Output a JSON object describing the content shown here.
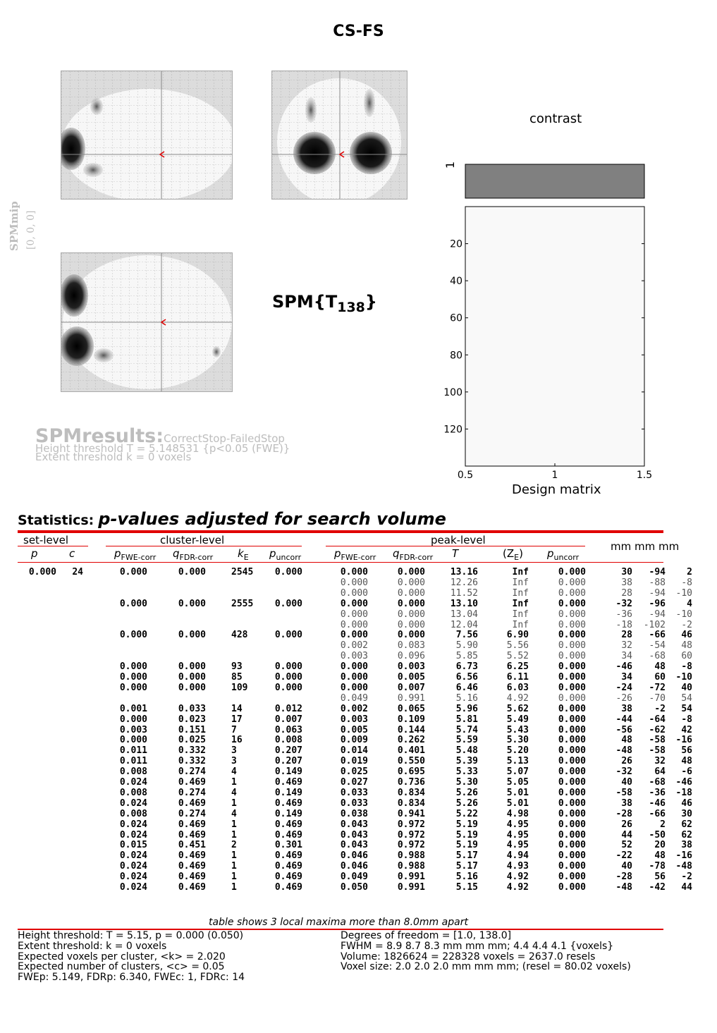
{
  "title": "CS-FS",
  "spm_mip": {
    "label": "SPMmip",
    "coords": "[0, 0, 0]"
  },
  "spm_stat": {
    "base": "SPM{T",
    "df": "138",
    "close": "}"
  },
  "contrast": {
    "title": "contrast",
    "row_label": "1",
    "fill_color": "#808080"
  },
  "design_matrix": {
    "xlabel": "Design matrix",
    "yticks": [
      "20",
      "40",
      "60",
      "80",
      "100",
      "120"
    ],
    "xticks": [
      "0.5",
      "1",
      "1.5"
    ]
  },
  "results": {
    "title": "SPMresults:",
    "path": "CorrectStop-FailedStop",
    "height": "Height threshold T = 5.148531  {p<0.05 (FWE)}",
    "extent": "Extent threshold k = 0 voxels"
  },
  "stats": {
    "label": "Statistics:",
    "subtitle": "p-values adjusted for search volume"
  },
  "table": {
    "group_headers": {
      "set": "set-level",
      "cluster": "cluster-level",
      "peak": "peak-level",
      "mm": "mm mm mm"
    },
    "col_headers": {
      "set_p": "p",
      "set_c": "c",
      "cl_fwe": "p",
      "cl_fwe_sub": "FWE-corr",
      "cl_fdr": "q",
      "cl_fdr_sub": "FDR-corr",
      "cl_k": "k",
      "cl_k_sub": "E",
      "cl_unc": "p",
      "cl_unc_sub": "uncorr",
      "pk_fwe": "p",
      "pk_fwe_sub": "FWE-corr",
      "pk_fdr": "q",
      "pk_fdr_sub": "FDR-corr",
      "pk_t": "T",
      "pk_z": "(Z",
      "pk_z_sub": "E",
      "pk_z_close": ")",
      "pk_unc": "p",
      "pk_unc_sub": "uncorr"
    },
    "rows": [
      {
        "b": 1,
        "c": [
          "0.000",
          "24",
          "0.000",
          "0.000",
          "2545",
          "0.000",
          "0.000",
          "0.000",
          "13.16",
          "Inf",
          "0.000",
          "30",
          "-94",
          "2"
        ]
      },
      {
        "b": 0,
        "c": [
          "",
          "",
          "",
          "",
          "",
          "",
          "0.000",
          "0.000",
          "12.26",
          "Inf",
          "0.000",
          "38",
          "-88",
          "-8"
        ]
      },
      {
        "b": 0,
        "c": [
          "",
          "",
          "",
          "",
          "",
          "",
          "0.000",
          "0.000",
          "11.52",
          "Inf",
          "0.000",
          "28",
          "-94",
          "-10"
        ]
      },
      {
        "b": 1,
        "c": [
          "",
          "",
          "0.000",
          "0.000",
          "2555",
          "0.000",
          "0.000",
          "0.000",
          "13.10",
          "Inf",
          "0.000",
          "-32",
          "-96",
          "4"
        ]
      },
      {
        "b": 0,
        "c": [
          "",
          "",
          "",
          "",
          "",
          "",
          "0.000",
          "0.000",
          "13.04",
          "Inf",
          "0.000",
          "-36",
          "-94",
          "-10"
        ]
      },
      {
        "b": 0,
        "c": [
          "",
          "",
          "",
          "",
          "",
          "",
          "0.000",
          "0.000",
          "12.04",
          "Inf",
          "0.000",
          "-18",
          "-102",
          "-2"
        ]
      },
      {
        "b": 1,
        "c": [
          "",
          "",
          "0.000",
          "0.000",
          "428",
          "0.000",
          "0.000",
          "0.000",
          "7.56",
          "6.90",
          "0.000",
          "28",
          "-66",
          "46"
        ]
      },
      {
        "b": 0,
        "c": [
          "",
          "",
          "",
          "",
          "",
          "",
          "0.002",
          "0.083",
          "5.90",
          "5.56",
          "0.000",
          "32",
          "-54",
          "48"
        ]
      },
      {
        "b": 0,
        "c": [
          "",
          "",
          "",
          "",
          "",
          "",
          "0.003",
          "0.096",
          "5.85",
          "5.52",
          "0.000",
          "34",
          "-68",
          "60"
        ]
      },
      {
        "b": 1,
        "c": [
          "",
          "",
          "0.000",
          "0.000",
          "93",
          "0.000",
          "0.000",
          "0.003",
          "6.73",
          "6.25",
          "0.000",
          "-46",
          "48",
          "-8"
        ]
      },
      {
        "b": 1,
        "c": [
          "",
          "",
          "0.000",
          "0.000",
          "85",
          "0.000",
          "0.000",
          "0.005",
          "6.56",
          "6.11",
          "0.000",
          "34",
          "60",
          "-10"
        ]
      },
      {
        "b": 1,
        "c": [
          "",
          "",
          "0.000",
          "0.000",
          "109",
          "0.000",
          "0.000",
          "0.007",
          "6.46",
          "6.03",
          "0.000",
          "-24",
          "-72",
          "40"
        ]
      },
      {
        "b": 0,
        "c": [
          "",
          "",
          "",
          "",
          "",
          "",
          "0.049",
          "0.991",
          "5.16",
          "4.92",
          "0.000",
          "-26",
          "-70",
          "54"
        ]
      },
      {
        "b": 1,
        "c": [
          "",
          "",
          "0.001",
          "0.033",
          "14",
          "0.012",
          "0.002",
          "0.065",
          "5.96",
          "5.62",
          "0.000",
          "38",
          "-2",
          "54"
        ]
      },
      {
        "b": 1,
        "c": [
          "",
          "",
          "0.000",
          "0.023",
          "17",
          "0.007",
          "0.003",
          "0.109",
          "5.81",
          "5.49",
          "0.000",
          "-44",
          "-64",
          "-8"
        ]
      },
      {
        "b": 1,
        "c": [
          "",
          "",
          "0.003",
          "0.151",
          "7",
          "0.063",
          "0.005",
          "0.144",
          "5.74",
          "5.43",
          "0.000",
          "-56",
          "-62",
          "42"
        ]
      },
      {
        "b": 1,
        "c": [
          "",
          "",
          "0.000",
          "0.025",
          "16",
          "0.008",
          "0.009",
          "0.262",
          "5.59",
          "5.30",
          "0.000",
          "48",
          "-58",
          "-16"
        ]
      },
      {
        "b": 1,
        "c": [
          "",
          "",
          "0.011",
          "0.332",
          "3",
          "0.207",
          "0.014",
          "0.401",
          "5.48",
          "5.20",
          "0.000",
          "-48",
          "-58",
          "56"
        ]
      },
      {
        "b": 1,
        "c": [
          "",
          "",
          "0.011",
          "0.332",
          "3",
          "0.207",
          "0.019",
          "0.550",
          "5.39",
          "5.13",
          "0.000",
          "26",
          "32",
          "48"
        ]
      },
      {
        "b": 1,
        "c": [
          "",
          "",
          "0.008",
          "0.274",
          "4",
          "0.149",
          "0.025",
          "0.695",
          "5.33",
          "5.07",
          "0.000",
          "-32",
          "64",
          "-6"
        ]
      },
      {
        "b": 1,
        "c": [
          "",
          "",
          "0.024",
          "0.469",
          "1",
          "0.469",
          "0.027",
          "0.736",
          "5.30",
          "5.05",
          "0.000",
          "40",
          "-68",
          "-46"
        ]
      },
      {
        "b": 1,
        "c": [
          "",
          "",
          "0.008",
          "0.274",
          "4",
          "0.149",
          "0.033",
          "0.834",
          "5.26",
          "5.01",
          "0.000",
          "-58",
          "-36",
          "-18"
        ]
      },
      {
        "b": 1,
        "c": [
          "",
          "",
          "0.024",
          "0.469",
          "1",
          "0.469",
          "0.033",
          "0.834",
          "5.26",
          "5.01",
          "0.000",
          "38",
          "-46",
          "46"
        ]
      },
      {
        "b": 1,
        "c": [
          "",
          "",
          "0.008",
          "0.274",
          "4",
          "0.149",
          "0.038",
          "0.941",
          "5.22",
          "4.98",
          "0.000",
          "-28",
          "-66",
          "30"
        ]
      },
      {
        "b": 1,
        "c": [
          "",
          "",
          "0.024",
          "0.469",
          "1",
          "0.469",
          "0.043",
          "0.972",
          "5.19",
          "4.95",
          "0.000",
          "26",
          "2",
          "62"
        ]
      },
      {
        "b": 1,
        "c": [
          "",
          "",
          "0.024",
          "0.469",
          "1",
          "0.469",
          "0.043",
          "0.972",
          "5.19",
          "4.95",
          "0.000",
          "44",
          "-50",
          "62"
        ]
      },
      {
        "b": 1,
        "c": [
          "",
          "",
          "0.015",
          "0.451",
          "2",
          "0.301",
          "0.043",
          "0.972",
          "5.19",
          "4.95",
          "0.000",
          "52",
          "20",
          "38"
        ]
      },
      {
        "b": 1,
        "c": [
          "",
          "",
          "0.024",
          "0.469",
          "1",
          "0.469",
          "0.046",
          "0.988",
          "5.17",
          "4.94",
          "0.000",
          "-22",
          "48",
          "-16"
        ]
      },
      {
        "b": 1,
        "c": [
          "",
          "",
          "0.024",
          "0.469",
          "1",
          "0.469",
          "0.046",
          "0.988",
          "5.17",
          "4.93",
          "0.000",
          "40",
          "-78",
          "-48"
        ]
      },
      {
        "b": 1,
        "c": [
          "",
          "",
          "0.024",
          "0.469",
          "1",
          "0.469",
          "0.049",
          "0.991",
          "5.16",
          "4.92",
          "0.000",
          "-28",
          "56",
          "-2"
        ]
      },
      {
        "b": 1,
        "c": [
          "",
          "",
          "0.024",
          "0.469",
          "1",
          "0.469",
          "0.050",
          "0.991",
          "5.15",
          "4.92",
          "0.000",
          "-48",
          "-42",
          "44"
        ]
      }
    ]
  },
  "footer": {
    "note": "table shows 3 local maxima more than 8.0mm apart",
    "left": [
      "Height threshold: T = 5.15, p = 0.000 (0.050)",
      "Extent threshold: k = 0 voxels",
      "Expected voxels per cluster, <k> = 2.020",
      "Expected number of clusters, <c> = 0.05",
      "FWEp: 5.149, FDRp: 6.340, FWEc: 1, FDRc: 14"
    ],
    "right": [
      "Degrees of freedom = [1.0, 138.0]",
      "FWHM = 8.9 8.7 8.3 mm mm mm; 4.4 4.4 4.1 {voxels}",
      "Volume: 1826624 = 228328 voxels = 2637.0 resels",
      "Voxel size: 2.0 2.0 2.0 mm mm mm; (resel = 80.02 voxels)"
    ]
  },
  "colors": {
    "accent_red": "#e00000",
    "faded_text": "#bdbdbd"
  }
}
